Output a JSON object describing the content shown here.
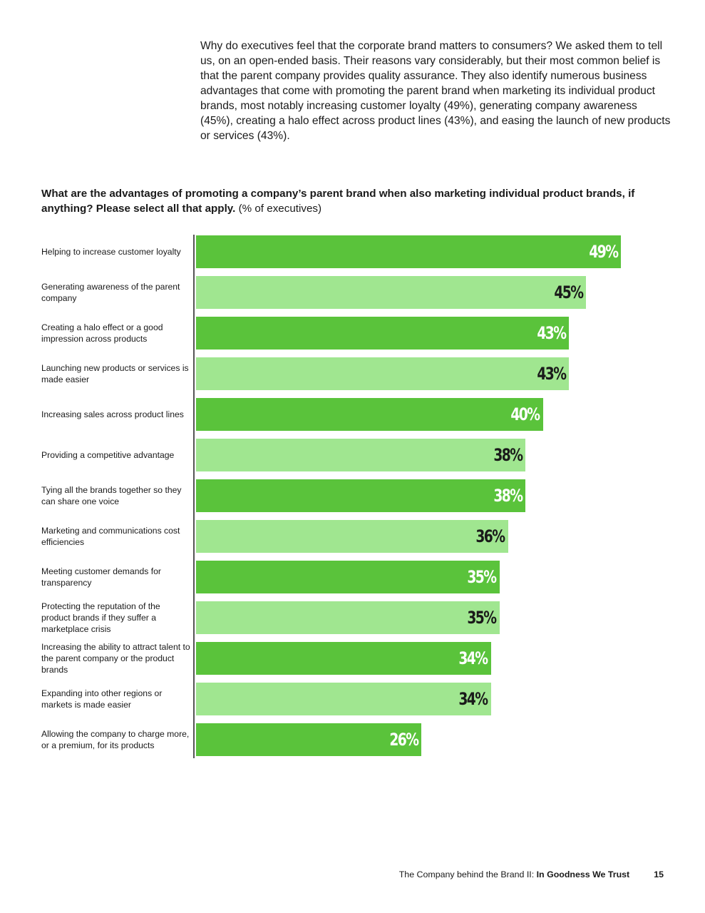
{
  "intro_text": "Why do executives feel that the corporate brand matters to consumers? We asked them to tell us, on an open-ended basis. Their reasons vary considerably, but their most common belief is that the parent company provides quality assurance. They also identify numerous business advantages that come with promoting the parent brand when marketing its individual product brands, most notably increasing customer loyalty (49%), generating company awareness (45%), creating a halo effect across product lines (43%), and easing the launch of new products or services (43%).",
  "question": {
    "bold": "What are the advantages of promoting a company’s parent brand when also marketing individual product brands, if anything? Please select all that apply.",
    "normal": "(% of executives)"
  },
  "colors": {
    "dark_green": "#5ac33b",
    "light_green": "#a0e690",
    "label_white": "#ffffff",
    "label_dark": "#1a1a1a"
  },
  "chart_data": {
    "type": "bar",
    "orientation": "horizontal",
    "unit": "%",
    "categories": [
      "Helping to increase customer loyalty",
      "Generating awareness of the parent company",
      "Creating a halo effect or a good impression across products",
      "Launching new products or services is made easier",
      "Increasing sales across product lines",
      "Providing a competitive advantage",
      "Tying all the brands together so they can share one voice",
      "Marketing and communications cost efficiencies",
      "Meeting customer demands for transparency",
      "Protecting the reputation of the product brands if they suffer a marketplace crisis",
      "Increasing the ability to attract talent to the parent company or the product brands",
      "Expanding into other regions or markets is made easier",
      "Allowing the company to charge more, or a premium, for its products"
    ],
    "values": [
      49,
      45,
      43,
      43,
      40,
      38,
      38,
      36,
      35,
      35,
      34,
      34,
      26
    ],
    "value_labels": [
      "49%",
      "45%",
      "43%",
      "43%",
      "40%",
      "38%",
      "38%",
      "36%",
      "35%",
      "35%",
      "34%",
      "34%",
      "26%"
    ],
    "xlim": [
      0,
      49
    ],
    "grid": false,
    "legend": "none"
  },
  "footer": {
    "title_regular": "The Company behind the Brand II: ",
    "title_bold": "In Goodness We Trust",
    "page_number": "15"
  }
}
